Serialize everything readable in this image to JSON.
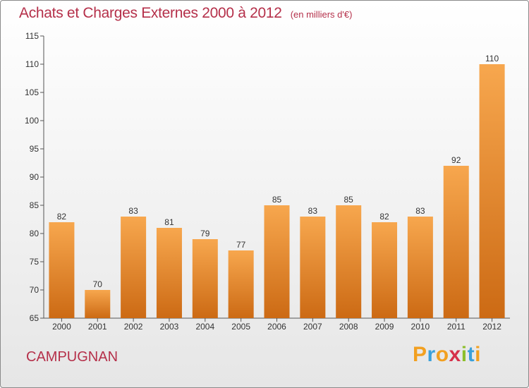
{
  "chart_data": {
    "type": "bar",
    "title": "Achats et Charges Externes 2000 à 2012",
    "subtitle": "(en milliers d'€)",
    "categories": [
      "2000",
      "2001",
      "2002",
      "2003",
      "2004",
      "2005",
      "2006",
      "2007",
      "2008",
      "2009",
      "2010",
      "2011",
      "2012"
    ],
    "values": [
      82,
      70,
      83,
      81,
      79,
      77,
      85,
      83,
      85,
      82,
      83,
      92,
      110
    ],
    "data_labels": [
      "82",
      "70",
      "83",
      "81",
      "79",
      "77",
      "85",
      "83",
      "85",
      "82",
      "83",
      "92",
      "110"
    ],
    "ylim": [
      65,
      115
    ],
    "yticks": [
      65,
      70,
      75,
      80,
      85,
      90,
      95,
      100,
      105,
      110,
      115
    ],
    "grid": false,
    "xlabel": "",
    "ylabel": "",
    "colors": {
      "bar_light": "#f7a74e",
      "bar_dark": "#cc6a14",
      "title": "#b5304a",
      "axis": "#555555"
    }
  },
  "footer": {
    "place": "CAMPUGNAN",
    "brand_letters": [
      {
        "char": "P",
        "color": "#f2a020"
      },
      {
        "char": "r",
        "color": "#3aa0da"
      },
      {
        "char": "o",
        "color": "#f2a020"
      },
      {
        "char": "x",
        "color": "#d6304a"
      },
      {
        "char": "i",
        "color": "#8cbf2a"
      },
      {
        "char": "t",
        "color": "#3aa0da"
      },
      {
        "char": "i",
        "color": "#f2a020"
      }
    ]
  }
}
